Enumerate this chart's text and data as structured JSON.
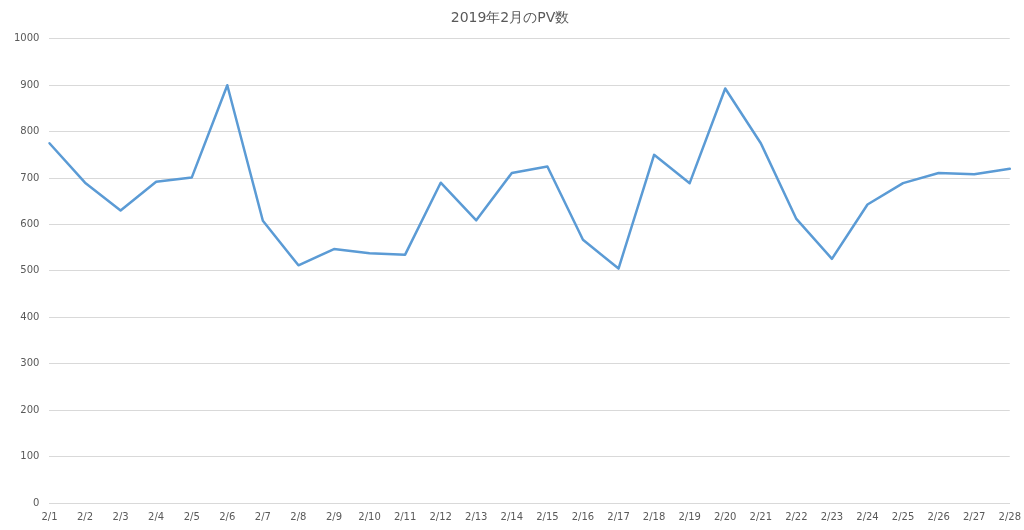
{
  "chart_data": {
    "type": "line",
    "title": "2019年2月のPV数",
    "categories": [
      "2/1",
      "2/2",
      "2/3",
      "2/4",
      "2/5",
      "2/6",
      "2/7",
      "2/8",
      "2/9",
      "2/10",
      "2/11",
      "2/12",
      "2/13",
      "2/14",
      "2/15",
      "2/16",
      "2/17",
      "2/18",
      "2/19",
      "2/20",
      "2/21",
      "2/22",
      "2/23",
      "2/24",
      "2/25",
      "2/26",
      "2/27",
      "2/28"
    ],
    "series": [
      {
        "color": "#5b9bd5",
        "values": [
          775,
          690,
          630,
          692,
          701,
          900,
          608,
          512,
          547,
          538,
          535,
          690,
          609,
          711,
          725,
          567,
          505,
          750,
          689,
          893,
          775,
          612,
          526,
          643,
          689,
          711,
          708,
          720
        ]
      }
    ],
    "ylim": [
      0,
      1000
    ],
    "yticks": [
      0,
      100,
      200,
      300,
      400,
      500,
      600,
      700,
      800,
      900,
      1000
    ],
    "grid": "y",
    "legend": false,
    "marker": "none",
    "line_style": "solid"
  }
}
